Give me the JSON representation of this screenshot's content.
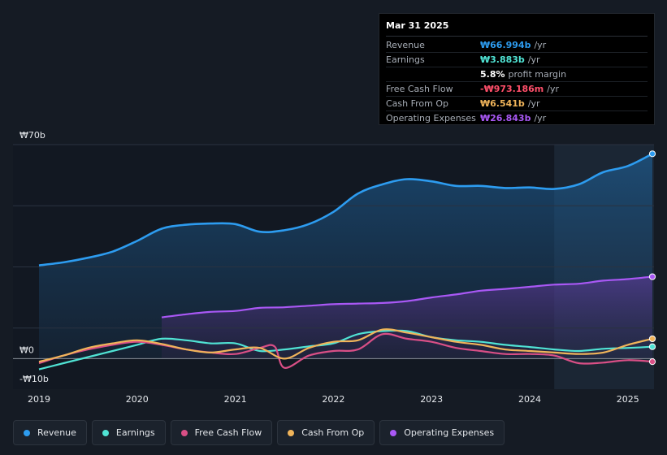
{
  "tooltip": {
    "date": "Mar 31 2025",
    "rows": [
      {
        "label": "Revenue",
        "value": "₩66.994b",
        "unit": "/yr",
        "color": "#2d9cf0"
      },
      {
        "label": "Earnings",
        "value": "₩3.883b",
        "unit": "/yr",
        "color": "#50e3d4"
      },
      {
        "label": "",
        "value": "5.8%",
        "unit": "profit margin",
        "color": "#ffffff"
      },
      {
        "label": "Free Cash Flow",
        "value": "-₩973.186m",
        "unit": "/yr",
        "color": "#ff4f6a"
      },
      {
        "label": "Cash From Op",
        "value": "₩6.541b",
        "unit": "/yr",
        "color": "#f0b45a"
      },
      {
        "label": "Operating Expenses",
        "value": "₩26.843b",
        "unit": "/yr",
        "color": "#a958f5"
      }
    ]
  },
  "legend": [
    {
      "label": "Revenue",
      "color": "#2d9cf0"
    },
    {
      "label": "Earnings",
      "color": "#50e3d4"
    },
    {
      "label": "Free Cash Flow",
      "color": "#d94f86"
    },
    {
      "label": "Cash From Op",
      "color": "#f0b45a"
    },
    {
      "label": "Operating Expenses",
      "color": "#a958f5"
    }
  ],
  "chart_data": {
    "type": "line",
    "y_tick_labels": [
      {
        "value": 70,
        "label": "₩70b"
      },
      {
        "value": 0,
        "label": "₩0"
      },
      {
        "value": -10,
        "label": "-₩10b"
      }
    ],
    "ylim": [
      -10,
      70
    ],
    "xlim": [
      2019.0,
      2025.25
    ],
    "x_ticks": [
      2019,
      2020,
      2021,
      2022,
      2023,
      2024,
      2025
    ],
    "x_tick_labels": [
      "2019",
      "2020",
      "2021",
      "2022",
      "2023",
      "2024",
      "2025"
    ],
    "highlight_start": 2024.25,
    "series": [
      {
        "name": "Revenue",
        "color": "#2d9cf0",
        "points": [
          [
            2019.0,
            30.5
          ],
          [
            2019.25,
            31.5
          ],
          [
            2019.5,
            33
          ],
          [
            2019.75,
            35
          ],
          [
            2020.0,
            38.5
          ],
          [
            2020.25,
            42.5
          ],
          [
            2020.5,
            43.8
          ],
          [
            2020.75,
            44.2
          ],
          [
            2021.0,
            44
          ],
          [
            2021.25,
            41.5
          ],
          [
            2021.5,
            42
          ],
          [
            2021.75,
            44
          ],
          [
            2022.0,
            48
          ],
          [
            2022.25,
            54
          ],
          [
            2022.5,
            57
          ],
          [
            2022.75,
            58.7
          ],
          [
            2023.0,
            58
          ],
          [
            2023.25,
            56.5
          ],
          [
            2023.5,
            56.5
          ],
          [
            2023.75,
            55.8
          ],
          [
            2024.0,
            56
          ],
          [
            2024.25,
            55.5
          ],
          [
            2024.5,
            57
          ],
          [
            2024.75,
            61
          ],
          [
            2025.0,
            63
          ],
          [
            2025.25,
            67
          ]
        ]
      },
      {
        "name": "Operating Expenses",
        "color": "#a958f5",
        "points": [
          [
            2020.25,
            13.5
          ],
          [
            2020.5,
            14.5
          ],
          [
            2020.75,
            15.3
          ],
          [
            2021.0,
            15.6
          ],
          [
            2021.25,
            16.6
          ],
          [
            2021.5,
            16.8
          ],
          [
            2021.75,
            17.3
          ],
          [
            2022.0,
            17.8
          ],
          [
            2022.25,
            18
          ],
          [
            2022.5,
            18.2
          ],
          [
            2022.75,
            18.8
          ],
          [
            2023.0,
            20
          ],
          [
            2023.25,
            21
          ],
          [
            2023.5,
            22.2
          ],
          [
            2023.75,
            22.8
          ],
          [
            2024.0,
            23.5
          ],
          [
            2024.25,
            24.2
          ],
          [
            2024.5,
            24.5
          ],
          [
            2024.75,
            25.5
          ],
          [
            2025.0,
            26
          ],
          [
            2025.25,
            26.8
          ]
        ]
      },
      {
        "name": "Earnings",
        "color": "#50e3d4",
        "points": [
          [
            2019.0,
            -3.5
          ],
          [
            2019.25,
            -1.5
          ],
          [
            2019.5,
            0.5
          ],
          [
            2019.75,
            2.5
          ],
          [
            2020.0,
            4.5
          ],
          [
            2020.25,
            6.5
          ],
          [
            2020.5,
            6
          ],
          [
            2020.75,
            5
          ],
          [
            2021.0,
            5
          ],
          [
            2021.25,
            2.5
          ],
          [
            2021.5,
            3
          ],
          [
            2021.75,
            4
          ],
          [
            2022.0,
            5
          ],
          [
            2022.25,
            8
          ],
          [
            2022.5,
            9
          ],
          [
            2022.75,
            9
          ],
          [
            2023.0,
            7
          ],
          [
            2023.25,
            6
          ],
          [
            2023.5,
            5.5
          ],
          [
            2023.75,
            4.5
          ],
          [
            2024.0,
            3.8
          ],
          [
            2024.25,
            3
          ],
          [
            2024.5,
            2.5
          ],
          [
            2024.75,
            3.2
          ],
          [
            2025.0,
            3.5
          ],
          [
            2025.25,
            3.9
          ]
        ]
      },
      {
        "name": "Free Cash Flow",
        "color": "#d94f86",
        "points": [
          [
            2019.0,
            -1.5
          ],
          [
            2019.25,
            1
          ],
          [
            2019.5,
            3
          ],
          [
            2019.75,
            4.5
          ],
          [
            2020.0,
            5.5
          ],
          [
            2020.25,
            4.5
          ],
          [
            2020.5,
            3
          ],
          [
            2020.75,
            2
          ],
          [
            2021.0,
            1.5
          ],
          [
            2021.25,
            3.5
          ],
          [
            2021.4,
            4
          ],
          [
            2021.5,
            -3
          ],
          [
            2021.75,
            1
          ],
          [
            2022.0,
            2.5
          ],
          [
            2022.25,
            3
          ],
          [
            2022.5,
            8
          ],
          [
            2022.75,
            6.5
          ],
          [
            2023.0,
            5.5
          ],
          [
            2023.25,
            3.5
          ],
          [
            2023.5,
            2.5
          ],
          [
            2023.75,
            1.5
          ],
          [
            2024.0,
            1.5
          ],
          [
            2024.25,
            1
          ],
          [
            2024.5,
            -1.5
          ],
          [
            2024.75,
            -1.3
          ],
          [
            2025.0,
            -0.5
          ],
          [
            2025.25,
            -1
          ]
        ]
      },
      {
        "name": "Cash From Op",
        "color": "#f0b45a",
        "points": [
          [
            2019.0,
            -1
          ],
          [
            2019.25,
            1
          ],
          [
            2019.5,
            3.5
          ],
          [
            2019.75,
            5
          ],
          [
            2020.0,
            6
          ],
          [
            2020.25,
            4.8
          ],
          [
            2020.5,
            3
          ],
          [
            2020.75,
            2
          ],
          [
            2021.0,
            3
          ],
          [
            2021.25,
            3.5
          ],
          [
            2021.5,
            0
          ],
          [
            2021.75,
            3.5
          ],
          [
            2022.0,
            5.5
          ],
          [
            2022.25,
            6
          ],
          [
            2022.5,
            9.5
          ],
          [
            2022.75,
            8.5
          ],
          [
            2023.0,
            7
          ],
          [
            2023.25,
            5.5
          ],
          [
            2023.5,
            4.5
          ],
          [
            2023.75,
            3
          ],
          [
            2024.0,
            2.5
          ],
          [
            2024.25,
            2
          ],
          [
            2024.5,
            1.5
          ],
          [
            2024.75,
            2
          ],
          [
            2025.0,
            4.5
          ],
          [
            2025.25,
            6.5
          ]
        ]
      }
    ]
  }
}
